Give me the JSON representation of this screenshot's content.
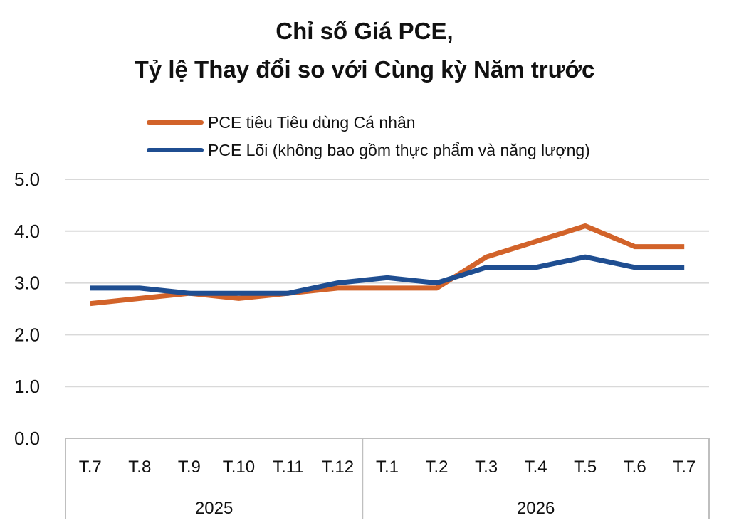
{
  "chart_data": {
    "type": "line",
    "title": "Chỉ số Giá PCE,",
    "subtitle": "Tỷ lệ Thay đổi so với Cùng kỳ Năm trước",
    "xlabel": "",
    "ylabel": "",
    "ylim": [
      0,
      5
    ],
    "yticks": [
      "0.0",
      "1.0",
      "2.0",
      "3.0",
      "4.0",
      "5.0"
    ],
    "grid": true,
    "legend_position": "top-left",
    "categories": [
      "T.7",
      "T.8",
      "T.9",
      "T.10",
      "T.11",
      "T.12",
      "T.1",
      "T.2",
      "T.3",
      "T.4",
      "T.5",
      "T.6",
      "T.7"
    ],
    "groups": [
      {
        "label": "2025",
        "count": 6
      },
      {
        "label": "2026",
        "count": 7
      }
    ],
    "series": [
      {
        "name": "PCE tiêu Tiêu dùng Cá nhân",
        "color": "#d2632a",
        "values": [
          2.6,
          2.7,
          2.8,
          2.7,
          2.8,
          2.9,
          2.9,
          2.9,
          3.5,
          3.8,
          4.1,
          3.7,
          3.7
        ]
      },
      {
        "name": "PCE Lõi (không bao gồm thực phẩm và năng lượng)",
        "color": "#1f4e91",
        "values": [
          2.9,
          2.9,
          2.8,
          2.8,
          2.8,
          3.0,
          3.1,
          3.0,
          3.3,
          3.3,
          3.5,
          3.3,
          3.3
        ]
      }
    ]
  }
}
